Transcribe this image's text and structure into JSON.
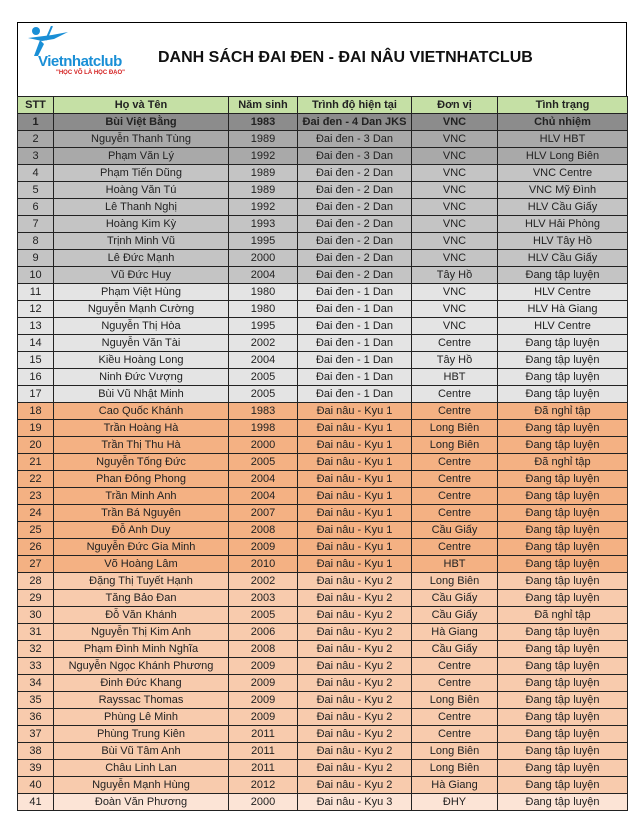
{
  "header": {
    "logo_text": "Vietnhatclub",
    "logo_tagline": "\"HỌC VÕ LÀ HỌC ĐẠO\"",
    "title": "DANH SÁCH ĐAI ĐEN - ĐAI NÂU VIETNHATCLUB"
  },
  "colors": {
    "header": "#c5e0a5",
    "brand_blue": "#1a8fd6",
    "black_belt_dark": "#8c8c8c",
    "brown_belt": "#f4b183"
  },
  "columns": [
    "STT",
    "Họ và Tên",
    "Năm sinh",
    "Trình độ hiện tại",
    "Đơn vị",
    "Tình trạng"
  ],
  "rows": [
    [
      "1",
      "Bùi Việt Bằng",
      "1983",
      "Đai đen - 4 Dan JKS",
      "VNC",
      "Chủ nhiệm"
    ],
    [
      "2",
      "Nguyễn Thanh Tùng",
      "1989",
      "Đai đen - 3 Dan",
      "VNC",
      "HLV HBT"
    ],
    [
      "3",
      "Phạm Văn Lý",
      "1992",
      "Đai đen - 3 Dan",
      "VNC",
      "HLV Long Biên"
    ],
    [
      "4",
      "Phạm Tiến Dũng",
      "1989",
      "Đai đen - 2 Dan",
      "VNC",
      "VNC Centre"
    ],
    [
      "5",
      "Hoàng Văn Tú",
      "1989",
      "Đai đen - 2 Dan",
      "VNC",
      "VNC Mỹ Đình"
    ],
    [
      "6",
      "Lê Thanh Nghị",
      "1992",
      "Đai đen - 2 Dan",
      "VNC",
      "HLV Cầu Giấy"
    ],
    [
      "7",
      "Hoàng Kim Kỳ",
      "1993",
      "Đai đen - 2 Dan",
      "VNC",
      "HLV Hải Phòng"
    ],
    [
      "8",
      "Trịnh Minh Vũ",
      "1995",
      "Đai đen - 2 Dan",
      "VNC",
      "HLV Tây Hồ"
    ],
    [
      "9",
      "Lê Đức Mạnh",
      "2000",
      "Đai đen - 2 Dan",
      "VNC",
      "HLV Cầu Giấy"
    ],
    [
      "10",
      "Vũ Đức Huy",
      "2004",
      "Đai đen - 2 Dan",
      "Tây Hồ",
      "Đang tập luyện"
    ],
    [
      "11",
      "Phạm Việt Hùng",
      "1980",
      "Đai đen - 1 Dan",
      "VNC",
      "HLV Centre"
    ],
    [
      "12",
      "Nguyễn Mạnh Cường",
      "1980",
      "Đai đen - 1 Dan",
      "VNC",
      "HLV Hà Giang"
    ],
    [
      "13",
      "Nguyễn Thị Hòa",
      "1995",
      "Đai đen - 1 Dan",
      "VNC",
      "HLV Centre"
    ],
    [
      "14",
      "Nguyễn Văn Tài",
      "2002",
      "Đai đen - 1 Dan",
      "Centre",
      "Đang tập luyện"
    ],
    [
      "15",
      "Kiều Hoàng Long",
      "2004",
      "Đai đen - 1 Dan",
      "Tây Hồ",
      "Đang tập luyện"
    ],
    [
      "16",
      "Ninh Đức Vượng",
      "2005",
      "Đai đen - 1 Dan",
      "HBT",
      "Đang tập luyện"
    ],
    [
      "17",
      "Bùi Vũ Nhật Minh",
      "2005",
      "Đai đen - 1 Dan",
      "Centre",
      "Đang tập luyện"
    ],
    [
      "18",
      "Cao Quốc Khánh",
      "1983",
      "Đai nâu - Kyu 1",
      "Centre",
      "Đã nghỉ tập"
    ],
    [
      "19",
      "Trần Hoàng Hà",
      "1998",
      "Đai nâu - Kyu 1",
      "Long Biên",
      "Đang tập luyện"
    ],
    [
      "20",
      "Trần Thị Thu Hà",
      "2000",
      "Đai nâu - Kyu 1",
      "Long Biên",
      "Đang tập luyện"
    ],
    [
      "21",
      "Nguyễn Tống Đức",
      "2005",
      "Đai nâu - Kyu 1",
      "Centre",
      "Đã nghỉ tập"
    ],
    [
      "22",
      "Phan Đông Phong",
      "2004",
      "Đai nâu - Kyu 1",
      "Centre",
      "Đang tập luyện"
    ],
    [
      "23",
      "Trần Minh Anh",
      "2004",
      "Đai nâu - Kyu 1",
      "Centre",
      "Đang tập luyện"
    ],
    [
      "24",
      "Trần Bá Nguyên",
      "2007",
      "Đai nâu - Kyu 1",
      "Centre",
      "Đang tập luyện"
    ],
    [
      "25",
      "Đỗ Anh Duy",
      "2008",
      "Đai nâu - Kyu 1",
      "Cầu Giấy",
      "Đang tập luyện"
    ],
    [
      "26",
      "Nguyễn Đức Gia Minh",
      "2009",
      "Đai nâu - Kyu 1",
      "Centre",
      "Đang tập luyện"
    ],
    [
      "27",
      "Võ Hoàng Lâm",
      "2010",
      "Đai nâu - Kyu 1",
      "HBT",
      "Đang tập luyện"
    ],
    [
      "28",
      "Đặng Thị Tuyết Hạnh",
      "2002",
      "Đai nâu - Kyu 2",
      "Long Biên",
      "Đang tập luyện"
    ],
    [
      "29",
      "Tăng Bảo Đan",
      "2003",
      "Đai nâu - Kyu 2",
      "Cầu Giấy",
      "Đang tập luyện"
    ],
    [
      "30",
      "Đỗ Văn Khánh",
      "2005",
      "Đai nâu - Kyu 2",
      "Cầu Giấy",
      "Đã nghỉ tập"
    ],
    [
      "31",
      "Nguyễn Thị Kim Anh",
      "2006",
      "Đai nâu - Kyu 2",
      "Hà Giang",
      "Đang tập luyện"
    ],
    [
      "32",
      "Phạm Đình Minh Nghĩa",
      "2008",
      "Đai nâu - Kyu 2",
      "Cầu Giấy",
      "Đang tập luyện"
    ],
    [
      "33",
      "Nguyễn Ngọc Khánh Phương",
      "2009",
      "Đai nâu - Kyu 2",
      "Centre",
      "Đang tập luyện"
    ],
    [
      "34",
      "Đinh Đức Khang",
      "2009",
      "Đai nâu - Kyu 2",
      "Centre",
      "Đang tập luyện"
    ],
    [
      "35",
      "Rayssac Thomas",
      "2009",
      "Đai nâu - Kyu 2",
      "Long Biên",
      "Đang tập luyện"
    ],
    [
      "36",
      "Phùng Lê Minh",
      "2009",
      "Đai nâu - Kyu 2",
      "Centre",
      "Đang tập luyện"
    ],
    [
      "37",
      "Phùng Trung Kiên",
      "2011",
      "Đai nâu - Kyu 2",
      "Centre",
      "Đang tập luyện"
    ],
    [
      "38",
      "Bùi Vũ Tâm Anh",
      "2011",
      "Đai nâu - Kyu 2",
      "Long Biên",
      "Đang tập luyện"
    ],
    [
      "39",
      "Châu Linh Lan",
      "2011",
      "Đai nâu - Kyu 2",
      "Long Biên",
      "Đang tập luyện"
    ],
    [
      "40",
      "Nguyễn Mạnh Hùng",
      "2012",
      "Đai nâu - Kyu 2",
      "Hà Giang",
      "Đang tập luyện"
    ],
    [
      "41",
      "Đoàn Văn Phương",
      "2000",
      "Đai nâu - Kyu 3",
      "ĐHY",
      "Đang tập luyện"
    ]
  ]
}
